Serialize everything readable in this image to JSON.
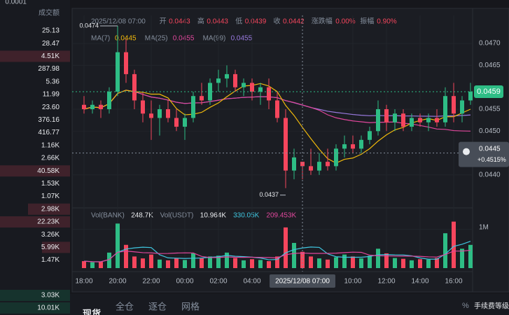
{
  "left_panel": {
    "top": "0.0001",
    "header": "成交额",
    "values": [
      "25.13",
      "28.47",
      "4.51K",
      "287.98",
      "5.36",
      "11.99",
      "23.60",
      "376.16",
      "416.77",
      "1.16K",
      "2.66K",
      "40.58K",
      "1.53K",
      "1.07K",
      "2.98K",
      "22.23K",
      "3.26K",
      "5.99K",
      "1.47K"
    ],
    "bottom_values": [
      "3.03K",
      "10.01K"
    ]
  },
  "info": {
    "time": "2025/12/08 07:00",
    "fields": [
      {
        "label": "开",
        "value": "0.0443"
      },
      {
        "label": "高",
        "value": "0.0443"
      },
      {
        "label": "低",
        "value": "0.0439"
      },
      {
        "label": "收",
        "value": "0.0442"
      },
      {
        "label": "涨跌幅",
        "value": "0.00%"
      },
      {
        "label": "振幅",
        "value": "0.90%"
      }
    ]
  },
  "ma_legend": [
    {
      "name": "MA(7)",
      "value": "0.0445",
      "color": "#f0b90b"
    },
    {
      "name": "MA(25)",
      "value": "0.0455",
      "color": "#e0479c"
    },
    {
      "name": "MA(99)",
      "value": "0.0455",
      "color": "#9a7ae0"
    }
  ],
  "vol_legend": [
    {
      "name": "Vol(BANK)",
      "value": "248.7K"
    },
    {
      "name": "Vol(USDT)",
      "value": "10.964K"
    },
    {
      "value": "330.05K",
      "color": "#3fc6e0"
    },
    {
      "value": "209.453K",
      "color": "#e0479c"
    }
  ],
  "chart_data": {
    "type": "candlestick",
    "ylim": [
      0.04328,
      0.04764
    ],
    "yticks": [
      {
        "value": 0.047,
        "label": "0.0470"
      },
      {
        "value": 0.0465,
        "label": "0.0465"
      },
      {
        "value": 0.0455,
        "label": "0.0455"
      },
      {
        "value": 0.045,
        "label": "0.0450"
      },
      {
        "value": 0.044,
        "label": "0.0440"
      }
    ],
    "x_labels": [
      "18:00",
      "20:00",
      "22:00",
      "00:00",
      "02:00",
      "04:00",
      null,
      null,
      "10:00",
      "12:00",
      "14:00",
      "16:00"
    ],
    "candles": [
      [
        0.0456,
        0.0458,
        0.0454,
        0.0455
      ],
      [
        0.0455,
        0.0457,
        0.0454,
        0.0456
      ],
      [
        0.0456,
        0.0457,
        0.0453,
        0.0455
      ],
      [
        0.0455,
        0.046,
        0.0454,
        0.0459
      ],
      [
        0.0459,
        0.0474,
        0.0458,
        0.0468
      ],
      [
        0.0468,
        0.0471,
        0.0461,
        0.0463
      ],
      [
        0.0463,
        0.0464,
        0.0455,
        0.0457
      ],
      [
        0.0457,
        0.0459,
        0.0452,
        0.0454
      ],
      [
        0.0454,
        0.0457,
        0.0448,
        0.0453
      ],
      [
        0.0453,
        0.0456,
        0.0449,
        0.0455
      ],
      [
        0.0455,
        0.0457,
        0.0452,
        0.0453
      ],
      [
        0.0453,
        0.0455,
        0.045,
        0.0451
      ],
      [
        0.0451,
        0.0454,
        0.0448,
        0.0453
      ],
      [
        0.0453,
        0.0459,
        0.0452,
        0.0458
      ],
      [
        0.0458,
        0.0461,
        0.0456,
        0.0457
      ],
      [
        0.0457,
        0.0462,
        0.0456,
        0.0461
      ],
      [
        0.0461,
        0.0464,
        0.0459,
        0.0462
      ],
      [
        0.0462,
        0.0465,
        0.046,
        0.0463
      ],
      [
        0.0463,
        0.0464,
        0.0459,
        0.046
      ],
      [
        0.046,
        0.0462,
        0.0458,
        0.0461
      ],
      [
        0.0461,
        0.0462,
        0.0457,
        0.0459
      ],
      [
        0.0459,
        0.0461,
        0.0456,
        0.046
      ],
      [
        0.046,
        0.0462,
        0.0455,
        0.0457
      ],
      [
        0.0457,
        0.0459,
        0.0452,
        0.0453
      ],
      [
        0.0453,
        0.0455,
        0.0437,
        0.0441
      ],
      [
        0.0441,
        0.0446,
        0.0439,
        0.0444
      ],
      [
        0.0443,
        0.0443,
        0.0439,
        0.0442
      ],
      [
        0.0442,
        0.0446,
        0.044,
        0.0441
      ],
      [
        0.0441,
        0.0445,
        0.044,
        0.0443
      ],
      [
        0.0443,
        0.0446,
        0.0441,
        0.0442
      ],
      [
        0.0442,
        0.0447,
        0.0441,
        0.0446
      ],
      [
        0.0446,
        0.0449,
        0.0444,
        0.0447
      ],
      [
        0.0447,
        0.0449,
        0.0445,
        0.0446
      ],
      [
        0.0446,
        0.0449,
        0.0445,
        0.0448
      ],
      [
        0.0448,
        0.0451,
        0.0447,
        0.045
      ],
      [
        0.045,
        0.0457,
        0.0449,
        0.0455
      ],
      [
        0.0455,
        0.0456,
        0.045,
        0.0452
      ],
      [
        0.0452,
        0.0455,
        0.045,
        0.0454
      ],
      [
        0.0454,
        0.0455,
        0.045,
        0.0451
      ],
      [
        0.0451,
        0.0454,
        0.045,
        0.0453
      ],
      [
        0.0453,
        0.0454,
        0.0451,
        0.0452
      ],
      [
        0.0452,
        0.0454,
        0.045,
        0.0453
      ],
      [
        0.0453,
        0.0455,
        0.0451,
        0.0452
      ],
      [
        0.0452,
        0.046,
        0.0451,
        0.0458
      ],
      [
        0.0458,
        0.0461,
        0.0452,
        0.0454
      ],
      [
        0.0454,
        0.0458,
        0.0452,
        0.0457
      ],
      [
        0.0457,
        0.0461,
        0.0456,
        0.0459
      ]
    ],
    "volume": [
      180,
      150,
      160,
      400,
      1150,
      600,
      300,
      250,
      350,
      220,
      200,
      260,
      210,
      380,
      250,
      300,
      320,
      400,
      260,
      200,
      230,
      210,
      180,
      300,
      1050,
      650,
      420,
      300,
      250,
      220,
      280,
      350,
      300,
      250,
      320,
      500,
      380,
      260,
      240,
      200,
      230,
      220,
      260,
      900,
      1200,
      500,
      600
    ],
    "vol_ylim": [
      0,
      1500
    ],
    "vol_yticks": [
      {
        "value": 1000,
        "label": "1M"
      }
    ],
    "high_label": "0.0474",
    "low_label": "0.0437",
    "last_price": {
      "value": 0.0459,
      "label": "0.0459"
    },
    "crosshair": {
      "time": "2025/12/08 07:00",
      "price": {
        "value": 0.0445,
        "label": "0.0445"
      },
      "change": "+0.4515%"
    }
  },
  "tabs": [
    "现货",
    "全仓",
    "逐仓",
    "网格"
  ],
  "fee": "手续费等级"
}
